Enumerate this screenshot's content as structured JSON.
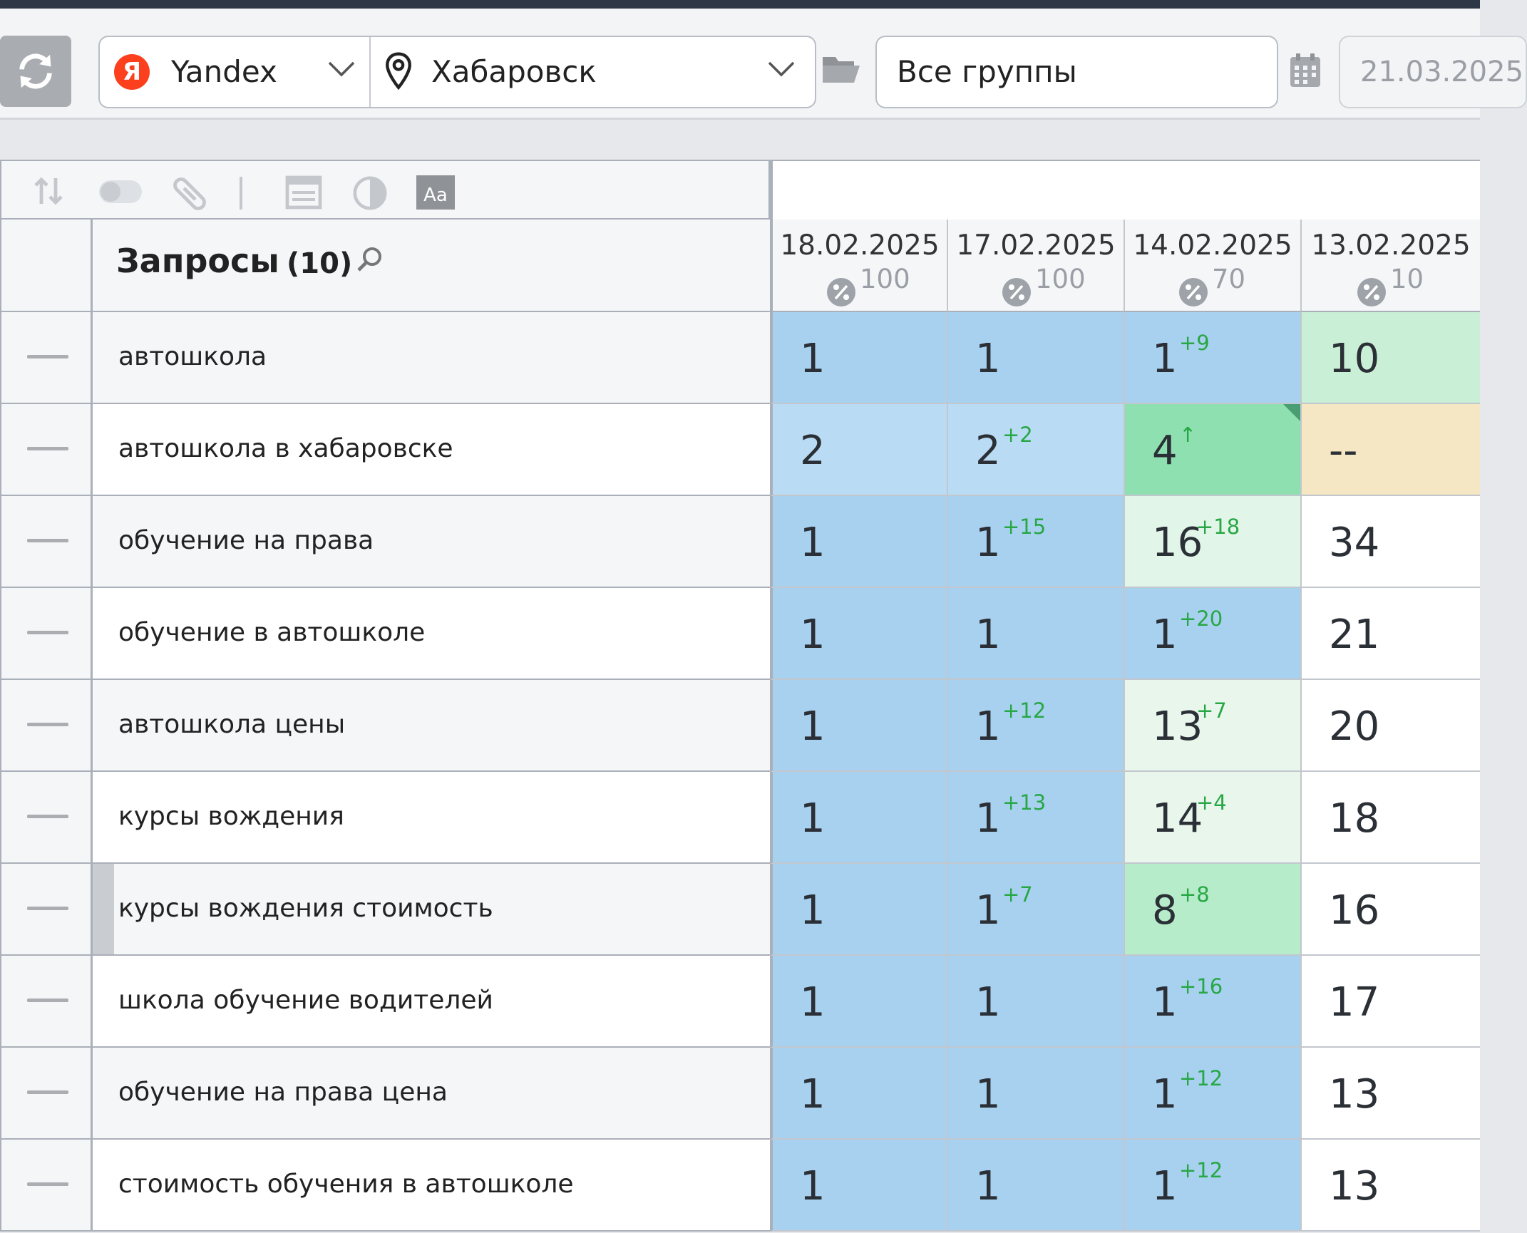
{
  "toolbar": {
    "engine": {
      "label": "Yandex",
      "logo_letter": "Я",
      "logo_color": "#fc3f1d"
    },
    "location": "Хабаровск",
    "groups": "Все группы",
    "date": "21.03.2025"
  },
  "table": {
    "title": "Запросы",
    "count": "(10)",
    "columns": [
      {
        "date": "18.02.2025",
        "percent": "100"
      },
      {
        "date": "17.02.2025",
        "percent": "100"
      },
      {
        "date": "14.02.2025",
        "percent": "70"
      },
      {
        "date": "13.02.2025",
        "percent": "10"
      }
    ],
    "rows": [
      {
        "query": "автошкола",
        "cells": [
          {
            "value": "1",
            "change": "",
            "bg": "#a8d1f0"
          },
          {
            "value": "1",
            "change": "",
            "bg": "#a8d1f0"
          },
          {
            "value": "1",
            "change": "+9",
            "bg": "#a8d1f0"
          },
          {
            "value": "10",
            "change": "",
            "bg": "#c9efd6"
          }
        ]
      },
      {
        "query": "автошкола в хабаровске",
        "cells": [
          {
            "value": "2",
            "change": "",
            "bg": "#b9dbf3"
          },
          {
            "value": "2",
            "change": "+2",
            "bg": "#b9dbf3"
          },
          {
            "value": "4",
            "change": "↑",
            "bg": "#8ee0b0"
          },
          {
            "value": "--",
            "change": "",
            "bg": "#f5e6c4"
          }
        ]
      },
      {
        "query": "обучение на права",
        "cells": [
          {
            "value": "1",
            "change": "",
            "bg": "#a8d1f0"
          },
          {
            "value": "1",
            "change": "+15",
            "bg": "#a8d1f0"
          },
          {
            "value": "16",
            "change": "+18",
            "bg": "#e1f5e8"
          },
          {
            "value": "34",
            "change": "",
            "bg": "#ffffff"
          }
        ]
      },
      {
        "query": "обучение в автошколе",
        "cells": [
          {
            "value": "1",
            "change": "",
            "bg": "#a8d1f0"
          },
          {
            "value": "1",
            "change": "",
            "bg": "#a8d1f0"
          },
          {
            "value": "1",
            "change": "+20",
            "bg": "#a8d1f0"
          },
          {
            "value": "21",
            "change": "",
            "bg": "#ffffff"
          }
        ]
      },
      {
        "query": "автошкола цены",
        "cells": [
          {
            "value": "1",
            "change": "",
            "bg": "#a8d1f0"
          },
          {
            "value": "1",
            "change": "+12",
            "bg": "#a8d1f0"
          },
          {
            "value": "13",
            "change": "+7",
            "bg": "#e8f6ec"
          },
          {
            "value": "20",
            "change": "",
            "bg": "#ffffff"
          }
        ]
      },
      {
        "query": "курсы вождения",
        "cells": [
          {
            "value": "1",
            "change": "",
            "bg": "#a8d1f0"
          },
          {
            "value": "1",
            "change": "+13",
            "bg": "#a8d1f0"
          },
          {
            "value": "14",
            "change": "+4",
            "bg": "#e8f6ec"
          },
          {
            "value": "18",
            "change": "",
            "bg": "#ffffff"
          }
        ]
      },
      {
        "query": "курсы вождения стоимость",
        "cells": [
          {
            "value": "1",
            "change": "",
            "bg": "#a8d1f0"
          },
          {
            "value": "1",
            "change": "+7",
            "bg": "#a8d1f0"
          },
          {
            "value": "8",
            "change": "+8",
            "bg": "#b6ecc9"
          },
          {
            "value": "16",
            "change": "",
            "bg": "#ffffff"
          }
        ]
      },
      {
        "query": "школа обучение водителей",
        "cells": [
          {
            "value": "1",
            "change": "",
            "bg": "#a8d1f0"
          },
          {
            "value": "1",
            "change": "",
            "bg": "#a8d1f0"
          },
          {
            "value": "1",
            "change": "+16",
            "bg": "#a8d1f0"
          },
          {
            "value": "17",
            "change": "",
            "bg": "#ffffff"
          }
        ]
      },
      {
        "query": "обучение на права цена",
        "cells": [
          {
            "value": "1",
            "change": "",
            "bg": "#a8d1f0"
          },
          {
            "value": "1",
            "change": "",
            "bg": "#a8d1f0"
          },
          {
            "value": "1",
            "change": "+12",
            "bg": "#a8d1f0"
          },
          {
            "value": "13",
            "change": "",
            "bg": "#ffffff"
          }
        ]
      },
      {
        "query": "стоимость обучения в автошколе",
        "cells": [
          {
            "value": "1",
            "change": "",
            "bg": "#a8d1f0"
          },
          {
            "value": "1",
            "change": "",
            "bg": "#a8d1f0"
          },
          {
            "value": "1",
            "change": "+12",
            "bg": "#a8d1f0"
          },
          {
            "value": "13",
            "change": "",
            "bg": "#ffffff"
          }
        ]
      }
    ]
  }
}
